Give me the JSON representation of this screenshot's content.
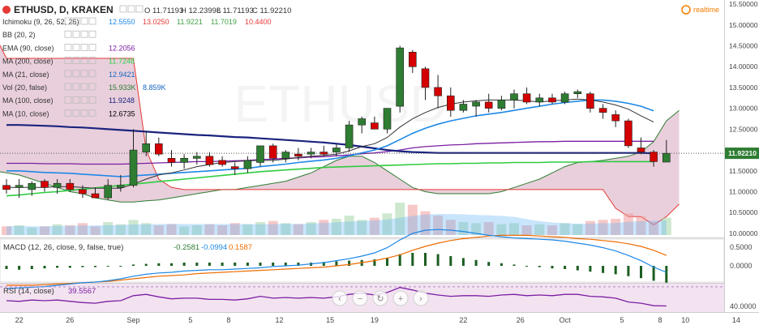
{
  "header": {
    "symbol_line": "ETHUSD, D, KRAKEN",
    "ohlc": {
      "o": "O 11.71193",
      "h": "H 12.23998",
      "l": "L 11.71193",
      "c": "C 11.92210"
    },
    "realtime_label": "realtime"
  },
  "indicator_legend": [
    {
      "name": "Ichimoku (9, 26, 52, 26)",
      "values": [
        {
          "v": "12.5550",
          "color": "#1e88e5"
        },
        {
          "v": "13.0250",
          "color": "#e53935"
        },
        {
          "v": "11.9221",
          "color": "#43a047"
        },
        {
          "v": "11.7019",
          "color": "#43a047"
        },
        {
          "v": "10.4400",
          "color": "#e53935"
        }
      ]
    },
    {
      "name": "BB (20, 2)",
      "values": []
    },
    {
      "name": "EMA (90, close)",
      "values": [
        {
          "v": "12.2056",
          "color": "#7b1fa2"
        }
      ]
    },
    {
      "name": "MA (200, close)",
      "values": [
        {
          "v": "11.7248",
          "color": "#2ecc40"
        }
      ]
    },
    {
      "name": "MA (21, close)",
      "values": [
        {
          "v": "12.9421",
          "color": "#1565c0"
        }
      ]
    },
    {
      "name": "Vol (20, false)",
      "values": [
        {
          "v": "15.933K",
          "color": "#2e7d32"
        },
        {
          "v": "8.859K",
          "color": "#1565c0"
        }
      ]
    },
    {
      "name": "MA (100, close)",
      "values": [
        {
          "v": "11.9248",
          "color": "#1a237e"
        }
      ]
    },
    {
      "name": "MA (10, close)",
      "values": [
        {
          "v": "12.6735",
          "color": "#000000"
        }
      ]
    }
  ],
  "price_axis": {
    "ticks": [
      "15.50000",
      "15.00000",
      "14.50000",
      "14.00000",
      "13.50000",
      "13.00000",
      "12.50000",
      "12.00000",
      "11.50000",
      "11.00000",
      "10.50000",
      "10.00000"
    ],
    "last_price": "11.92210"
  },
  "date_axis": {
    "ticks": [
      "22",
      "26",
      "Sep",
      "5",
      "8",
      "12",
      "15",
      "19",
      "22",
      "26",
      "Oct",
      "5",
      "8",
      "10",
      "14"
    ]
  },
  "macd_panel": {
    "legend": "MACD (12, 26, close, 9, false, true)",
    "values": [
      {
        "v": "-0.2581",
        "color": "#2e7d32"
      },
      {
        "v": "-0.0994",
        "color": "#1e88e5"
      },
      {
        "v": "0.1587",
        "color": "#ef6c00"
      }
    ],
    "axis_ticks": [
      "0.5000",
      "0.0000"
    ]
  },
  "rsi_panel": {
    "legend": "RSI (14, close)",
    "value": "39.5567",
    "axis_ticks": [
      "40.0000"
    ]
  },
  "colors": {
    "up": "#2e7d32",
    "down": "#d50000",
    "macd_line": "#1e88e5",
    "signal_line": "#ef6c00",
    "rsi_line": "#7b1fa2",
    "cloud": "#d7a7c0"
  },
  "chart_data": {
    "type": "candlestick",
    "title": "ETHUSD, D, KRAKEN",
    "ylim": [
      9.9,
      15.6
    ],
    "candles": [
      {
        "o": 11.15,
        "h": 11.3,
        "l": 10.95,
        "c": 11.05
      },
      {
        "o": 11.1,
        "h": 11.3,
        "l": 10.85,
        "c": 11.15
      },
      {
        "o": 11.05,
        "h": 11.25,
        "l": 10.9,
        "c": 11.2
      },
      {
        "o": 11.25,
        "h": 11.3,
        "l": 11.0,
        "c": 11.1
      },
      {
        "o": 11.1,
        "h": 11.3,
        "l": 10.95,
        "c": 11.2
      },
      {
        "o": 11.2,
        "h": 11.3,
        "l": 11.0,
        "c": 11.05
      },
      {
        "o": 11.05,
        "h": 11.15,
        "l": 10.85,
        "c": 10.95
      },
      {
        "o": 10.95,
        "h": 11.1,
        "l": 10.85,
        "c": 10.85
      },
      {
        "o": 10.85,
        "h": 11.3,
        "l": 10.8,
        "c": 11.15
      },
      {
        "o": 11.1,
        "h": 11.4,
        "l": 11.0,
        "c": 11.15
      },
      {
        "o": 11.15,
        "h": 12.5,
        "l": 11.1,
        "c": 12.0
      },
      {
        "o": 11.95,
        "h": 12.45,
        "l": 11.85,
        "c": 12.15
      },
      {
        "o": 12.15,
        "h": 12.3,
        "l": 11.85,
        "c": 11.9
      },
      {
        "o": 11.8,
        "h": 12.0,
        "l": 11.6,
        "c": 11.7
      },
      {
        "o": 11.7,
        "h": 11.9,
        "l": 11.55,
        "c": 11.8
      },
      {
        "o": 11.8,
        "h": 11.95,
        "l": 11.65,
        "c": 11.85
      },
      {
        "o": 11.85,
        "h": 11.95,
        "l": 11.6,
        "c": 11.65
      },
      {
        "o": 11.75,
        "h": 11.85,
        "l": 11.6,
        "c": 11.65
      },
      {
        "o": 11.6,
        "h": 11.7,
        "l": 11.4,
        "c": 11.55
      },
      {
        "o": 11.55,
        "h": 11.85,
        "l": 11.45,
        "c": 11.75
      },
      {
        "o": 11.7,
        "h": 12.1,
        "l": 11.6,
        "c": 12.1
      },
      {
        "o": 12.1,
        "h": 12.15,
        "l": 11.7,
        "c": 11.8
      },
      {
        "o": 11.8,
        "h": 12.0,
        "l": 11.7,
        "c": 11.95
      },
      {
        "o": 11.9,
        "h": 12.05,
        "l": 11.75,
        "c": 11.85
      },
      {
        "o": 11.9,
        "h": 12.05,
        "l": 11.8,
        "c": 11.95
      },
      {
        "o": 11.95,
        "h": 12.1,
        "l": 11.85,
        "c": 11.9
      },
      {
        "o": 11.95,
        "h": 12.15,
        "l": 11.85,
        "c": 12.05
      },
      {
        "o": 12.05,
        "h": 12.7,
        "l": 11.95,
        "c": 12.6
      },
      {
        "o": 12.6,
        "h": 12.8,
        "l": 12.4,
        "c": 12.75
      },
      {
        "o": 12.65,
        "h": 12.8,
        "l": 12.5,
        "c": 12.5
      },
      {
        "o": 12.5,
        "h": 13.0,
        "l": 12.4,
        "c": 13.0
      },
      {
        "o": 13.05,
        "h": 14.5,
        "l": 12.9,
        "c": 14.45
      },
      {
        "o": 14.35,
        "h": 14.4,
        "l": 13.85,
        "c": 14.0
      },
      {
        "o": 13.95,
        "h": 14.0,
        "l": 13.2,
        "c": 13.5
      },
      {
        "o": 13.5,
        "h": 13.8,
        "l": 13.0,
        "c": 13.3
      },
      {
        "o": 13.3,
        "h": 13.5,
        "l": 12.8,
        "c": 12.95
      },
      {
        "o": 12.95,
        "h": 13.2,
        "l": 12.9,
        "c": 13.1
      },
      {
        "o": 13.05,
        "h": 13.2,
        "l": 12.8,
        "c": 13.15
      },
      {
        "o": 13.15,
        "h": 13.35,
        "l": 12.9,
        "c": 13.0
      },
      {
        "o": 13.0,
        "h": 13.3,
        "l": 12.95,
        "c": 13.2
      },
      {
        "o": 13.2,
        "h": 13.45,
        "l": 13.0,
        "c": 13.35
      },
      {
        "o": 13.35,
        "h": 13.5,
        "l": 13.1,
        "c": 13.15
      },
      {
        "o": 13.15,
        "h": 13.35,
        "l": 13.05,
        "c": 13.25
      },
      {
        "o": 13.25,
        "h": 13.35,
        "l": 13.1,
        "c": 13.15
      },
      {
        "o": 13.15,
        "h": 13.4,
        "l": 13.1,
        "c": 13.35
      },
      {
        "o": 13.35,
        "h": 13.45,
        "l": 13.25,
        "c": 13.4
      },
      {
        "o": 13.35,
        "h": 13.4,
        "l": 12.9,
        "c": 13.0
      },
      {
        "o": 13.0,
        "h": 13.1,
        "l": 12.75,
        "c": 12.9
      },
      {
        "o": 12.85,
        "h": 12.95,
        "l": 12.55,
        "c": 12.7
      },
      {
        "o": 12.7,
        "h": 12.75,
        "l": 12.05,
        "c": 12.1
      },
      {
        "o": 12.05,
        "h": 12.3,
        "l": 11.9,
        "c": 11.95
      },
      {
        "o": 11.95,
        "h": 12.0,
        "l": 11.6,
        "c": 11.72
      },
      {
        "o": 11.71,
        "h": 12.24,
        "l": 11.71,
        "c": 11.92
      }
    ],
    "volume": [
      8,
      9,
      7,
      8,
      10,
      9,
      11,
      8,
      12,
      10,
      14,
      11,
      9,
      10,
      8,
      9,
      10,
      9,
      11,
      10,
      12,
      13,
      11,
      10,
      12,
      14,
      15,
      18,
      14,
      16,
      20,
      30,
      28,
      22,
      18,
      14,
      12,
      11,
      12,
      10,
      11,
      9,
      10,
      9,
      11,
      10,
      13,
      14,
      15,
      20,
      17,
      12,
      16
    ],
    "macd_histogram": [
      -0.05,
      -0.06,
      -0.05,
      -0.04,
      -0.03,
      -0.03,
      -0.02,
      -0.02,
      -0.01,
      0.0,
      0.02,
      0.03,
      0.04,
      0.04,
      0.05,
      0.05,
      0.05,
      0.05,
      0.05,
      0.05,
      0.05,
      0.05,
      0.05,
      0.05,
      0.05,
      0.06,
      0.07,
      0.08,
      0.09,
      0.1,
      0.12,
      0.18,
      0.2,
      0.2,
      0.18,
      0.15,
      0.12,
      0.09,
      0.06,
      0.04,
      0.02,
      0.0,
      -0.02,
      -0.04,
      -0.05,
      -0.07,
      -0.09,
      -0.11,
      -0.13,
      -0.16,
      -0.19,
      -0.23,
      -0.26
    ],
    "macd_line": [
      -0.35,
      -0.34,
      -0.33,
      -0.32,
      -0.3,
      -0.28,
      -0.26,
      -0.25,
      -0.23,
      -0.2,
      -0.16,
      -0.13,
      -0.11,
      -0.1,
      -0.08,
      -0.07,
      -0.06,
      -0.06,
      -0.05,
      -0.04,
      -0.03,
      -0.01,
      0.0,
      0.01,
      0.03,
      0.05,
      0.08,
      0.11,
      0.15,
      0.2,
      0.28,
      0.4,
      0.5,
      0.55,
      0.56,
      0.55,
      0.53,
      0.5,
      0.47,
      0.45,
      0.43,
      0.42,
      0.41,
      0.4,
      0.38,
      0.35,
      0.32,
      0.28,
      0.23,
      0.16,
      0.08,
      -0.02,
      -0.1
    ],
    "signal_line": [
      -0.3,
      -0.3,
      -0.3,
      -0.29,
      -0.28,
      -0.27,
      -0.26,
      -0.25,
      -0.24,
      -0.22,
      -0.2,
      -0.18,
      -0.16,
      -0.15,
      -0.14,
      -0.12,
      -0.11,
      -0.1,
      -0.09,
      -0.08,
      -0.07,
      -0.06,
      -0.05,
      -0.04,
      -0.03,
      -0.02,
      0.0,
      0.02,
      0.05,
      0.08,
      0.12,
      0.17,
      0.24,
      0.3,
      0.35,
      0.39,
      0.42,
      0.44,
      0.46,
      0.47,
      0.47,
      0.47,
      0.46,
      0.45,
      0.44,
      0.42,
      0.41,
      0.39,
      0.37,
      0.34,
      0.3,
      0.24,
      0.16
    ],
    "rsi": [
      48,
      47,
      49,
      48,
      49,
      47,
      45,
      44,
      47,
      48,
      56,
      58,
      54,
      51,
      52,
      52,
      50,
      50,
      49,
      51,
      55,
      52,
      53,
      52,
      53,
      52,
      54,
      58,
      60,
      57,
      61,
      69,
      65,
      60,
      57,
      55,
      56,
      56,
      55,
      57,
      58,
      56,
      57,
      56,
      58,
      58,
      55,
      54,
      52,
      46,
      44,
      40,
      39.6
    ],
    "overlays": {
      "ma10": [
        11.1,
        11.1,
        11.1,
        11.1,
        11.12,
        11.12,
        11.1,
        11.08,
        11.08,
        11.08,
        11.18,
        11.3,
        11.4,
        11.45,
        11.52,
        11.6,
        11.65,
        11.7,
        11.72,
        11.74,
        11.75,
        11.75,
        11.78,
        11.82,
        11.85,
        11.87,
        11.9,
        11.98,
        12.08,
        12.15,
        12.3,
        12.55,
        12.75,
        12.9,
        13.02,
        13.1,
        13.15,
        13.18,
        13.2,
        13.2,
        13.2,
        13.18,
        13.15,
        13.18,
        13.2,
        13.22,
        13.2,
        13.15,
        13.08,
        12.98,
        12.82,
        12.67
      ],
      "ma21": [
        11.5,
        11.5,
        11.48,
        11.46,
        11.45,
        11.44,
        11.42,
        11.4,
        11.38,
        11.36,
        11.38,
        11.4,
        11.42,
        11.44,
        11.46,
        11.48,
        11.5,
        11.52,
        11.54,
        11.56,
        11.6,
        11.63,
        11.66,
        11.7,
        11.73,
        11.76,
        11.8,
        11.86,
        11.93,
        12.0,
        12.1,
        12.25,
        12.4,
        12.52,
        12.62,
        12.7,
        12.76,
        12.82,
        12.86,
        12.9,
        12.95,
        13.0,
        13.05,
        13.1,
        13.14,
        13.17,
        13.2,
        13.2,
        13.17,
        13.12,
        13.05,
        12.94
      ],
      "ma100": [
        12.6,
        12.6,
        12.59,
        12.58,
        12.57,
        12.55,
        12.54,
        12.52,
        12.5,
        12.48,
        12.46,
        12.44,
        12.42,
        12.4,
        12.38,
        12.36,
        12.35,
        12.33,
        12.31,
        12.3,
        12.28,
        12.26,
        12.24,
        12.22,
        12.2,
        12.18,
        12.15,
        12.12,
        12.08,
        12.04,
        12.0,
        11.97,
        11.95,
        11.94,
        11.93,
        11.93,
        11.93,
        11.93,
        11.93,
        11.93,
        11.93,
        11.93,
        11.93,
        11.93,
        11.93,
        11.93,
        11.93,
        11.93,
        11.93,
        11.93,
        11.93,
        11.92
      ],
      "ema90": [
        11.68,
        11.68,
        11.68,
        11.67,
        11.67,
        11.67,
        11.66,
        11.66,
        11.66,
        11.66,
        11.67,
        11.68,
        11.69,
        11.7,
        11.71,
        11.72,
        11.72,
        11.73,
        11.74,
        11.75,
        11.77,
        11.78,
        11.8,
        11.81,
        11.83,
        11.84,
        11.86,
        11.88,
        11.91,
        11.93,
        11.96,
        12.0,
        12.05,
        12.08,
        12.1,
        12.12,
        12.13,
        12.15,
        12.16,
        12.17,
        12.18,
        12.19,
        12.2,
        12.2,
        12.21,
        12.21,
        12.21,
        12.21,
        12.21,
        12.21,
        12.21,
        12.21
      ],
      "ma200": [
        10.9,
        10.92,
        10.95,
        10.98,
        11.0,
        11.03,
        11.06,
        11.09,
        11.12,
        11.15,
        11.18,
        11.21,
        11.24,
        11.27,
        11.3,
        11.33,
        11.36,
        11.39,
        11.42,
        11.45,
        11.48,
        11.5,
        11.52,
        11.54,
        11.56,
        11.58,
        11.59,
        11.6,
        11.61,
        11.62,
        11.63,
        11.64,
        11.65,
        11.66,
        11.67,
        11.67,
        11.68,
        11.68,
        11.69,
        11.69,
        11.7,
        11.7,
        11.7,
        11.71,
        11.71,
        11.71,
        11.72,
        11.72,
        11.72,
        11.72,
        11.72,
        11.72
      ]
    },
    "cloud": {
      "span_a": [
        11.6,
        11.6,
        11.55,
        11.5,
        11.45,
        11.4,
        11.3,
        11.2,
        11.1,
        11.0,
        10.95,
        10.85,
        10.8,
        10.75,
        10.75,
        10.78,
        10.8,
        10.85,
        10.9,
        10.95,
        11.0,
        11.05,
        11.05,
        11.1,
        11.15,
        11.2,
        11.25,
        11.35,
        11.45,
        11.6,
        11.75,
        11.85,
        11.85,
        11.7,
        11.5,
        11.3,
        11.1,
        11.0,
        10.95,
        10.95,
        10.95,
        10.95,
        10.95,
        11.0,
        11.1,
        11.2,
        11.3,
        11.45,
        11.6,
        11.7,
        11.72,
        11.75,
        11.8,
        11.85,
        11.95,
        12.2,
        12.7,
        12.95
      ],
      "span_b": [
        15.5,
        15.5,
        15.5,
        14.8,
        14.2,
        14.2,
        14.2,
        14.2,
        14.2,
        14.2,
        14.2,
        14.2,
        14.2,
        14.2,
        14.2,
        12.0,
        11.3,
        11.1,
        11.05,
        11.05,
        11.05,
        11.05,
        11.05,
        11.05,
        11.05,
        11.05,
        11.05,
        11.05,
        11.05,
        11.05,
        11.05,
        11.05,
        11.05,
        11.05,
        11.05,
        11.05,
        11.05,
        11.05,
        11.05,
        11.05,
        11.05,
        11.05,
        11.05,
        11.05,
        11.05,
        11.05,
        11.05,
        11.05,
        11.05,
        11.05,
        11.05,
        11.05,
        10.6,
        10.4,
        10.4,
        10.2,
        10.4,
        10.7
      ]
    }
  }
}
